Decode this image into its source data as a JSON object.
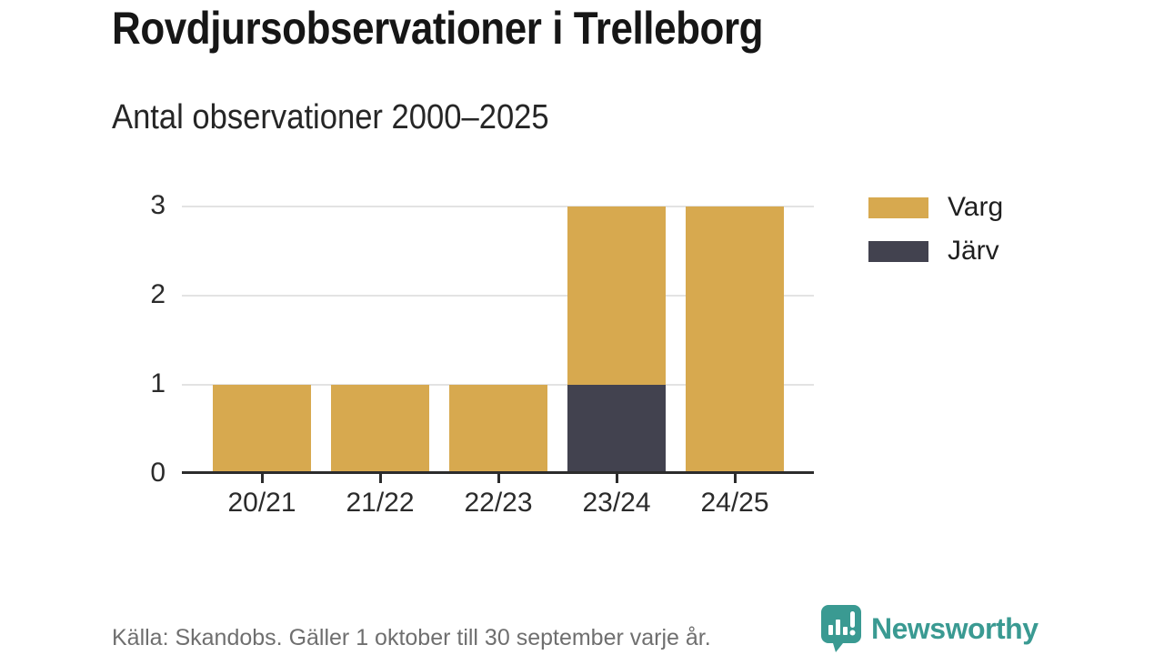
{
  "title": "Rovdjursobservationer i Trelleborg",
  "subtitle": "Antal observationer 2000–2025",
  "legend": [
    {
      "label": "Varg",
      "color": "#d7a94f"
    },
    {
      "label": "Järv",
      "color": "#42424f"
    }
  ],
  "chart_data": {
    "type": "bar",
    "stacked": true,
    "title": "Rovdjursobservationer i Trelleborg",
    "subtitle": "Antal observationer 2000–2025",
    "categories": [
      "20/21",
      "21/22",
      "22/23",
      "23/24",
      "24/25"
    ],
    "series": [
      {
        "name": "Varg",
        "color": "#d7a94f",
        "values": [
          1,
          1,
          1,
          2,
          3
        ]
      },
      {
        "name": "Järv",
        "color": "#42424f",
        "values": [
          0,
          0,
          0,
          1,
          0
        ]
      }
    ],
    "totals": [
      1,
      1,
      1,
      3,
      3
    ],
    "xlabel": "",
    "ylabel": "",
    "y_ticks": [
      0,
      1,
      2,
      3
    ],
    "ylim": [
      0,
      3
    ],
    "grid": true,
    "legend_position": "top-right"
  },
  "footer": {
    "source": "Källa: Skandobs. Gäller 1 oktober till 30 september varje år.",
    "brand": "Newsworthy"
  },
  "colors": {
    "varg": "#d7a94f",
    "jarv": "#42424f",
    "accent_teal": "#3a9a92",
    "gridline": "#e3e3e3",
    "axis_line": "#2c2c2c",
    "title_text": "#161616",
    "muted_text": "#6f6f6f"
  }
}
